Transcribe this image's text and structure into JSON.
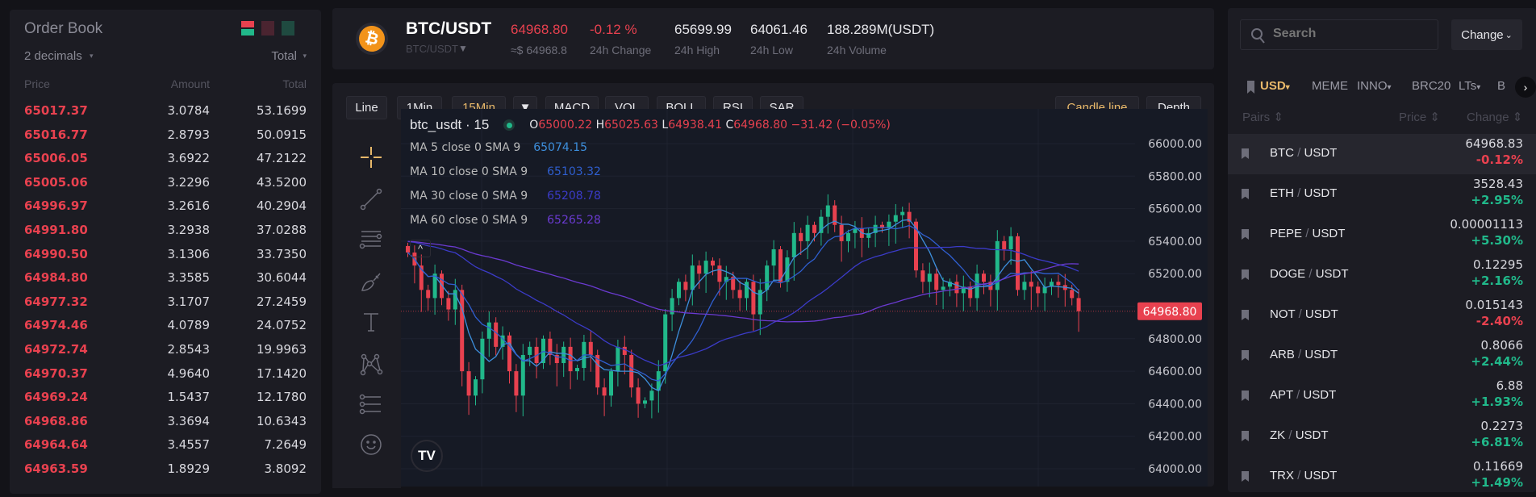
{
  "order_book": {
    "title": "Order Book",
    "decimals": "2 decimals",
    "total_select": "Total",
    "headers": {
      "price": "Price",
      "amount": "Amount",
      "total": "Total"
    },
    "asks": [
      [
        "65017.37",
        "3.0784",
        "53.1699"
      ],
      [
        "65016.77",
        "2.8793",
        "50.0915"
      ],
      [
        "65006.05",
        "3.6922",
        "47.2122"
      ],
      [
        "65005.06",
        "3.2296",
        "43.5200"
      ],
      [
        "64996.97",
        "3.2616",
        "40.2904"
      ],
      [
        "64991.80",
        "3.2938",
        "37.0288"
      ],
      [
        "64990.50",
        "3.1306",
        "33.7350"
      ],
      [
        "64984.80",
        "3.3585",
        "30.6044"
      ],
      [
        "64977.32",
        "3.1707",
        "27.2459"
      ],
      [
        "64974.46",
        "4.0789",
        "24.0752"
      ],
      [
        "64972.74",
        "2.8543",
        "19.9963"
      ],
      [
        "64970.37",
        "4.9640",
        "17.1420"
      ],
      [
        "64969.24",
        "1.5437",
        "12.1780"
      ],
      [
        "64968.86",
        "3.3694",
        "10.6343"
      ],
      [
        "64964.64",
        "3.4557",
        "7.2649"
      ],
      [
        "64963.59",
        "1.8929",
        "3.8092"
      ]
    ]
  },
  "ticker": {
    "pair": "BTC/USDT",
    "pair_select": "BTC/USDT",
    "price": "64968.80",
    "price_usd": "≈$ 64968.8",
    "change": "-0.12 %",
    "change_label": "24h Change",
    "high": "65699.99",
    "high_label": "24h High",
    "low": "64061.46",
    "low_label": "24h Low",
    "volume": "188.289M(USDT)",
    "volume_label": "24h Volume"
  },
  "toolbar": {
    "buttons": [
      "Line",
      "1Min",
      "15Min",
      "▼",
      "MACD",
      "VOL",
      "BOLL",
      "RSI",
      "SAR"
    ],
    "active": "15Min",
    "candle_line": "Candle line",
    "depth": "Depth"
  },
  "chart_data": {
    "type": "candlestick",
    "symbol": "btc_usdt · 15",
    "ohlc": {
      "o_label": "O",
      "o": "65000.22",
      "h_label": "H",
      "h": "65025.63",
      "l_label": "L",
      "l": "64938.41",
      "c_label": "C",
      "c": "64968.80",
      "change": "−31.42 (−0.05%)"
    },
    "ma": [
      {
        "label": "MA 5 close 0 SMA 9",
        "value": "65074.15",
        "color": "#3d8fdc",
        "period": 5
      },
      {
        "label": "MA 10 close 0 SMA 9",
        "value": "65103.32",
        "color": "#2f5fd0",
        "period": 10
      },
      {
        "label": "MA 30 close 0 SMA 9",
        "value": "65208.78",
        "color": "#3b3bc8",
        "period": 30
      },
      {
        "label": "MA 60 close 0 SMA 9",
        "value": "65265.28",
        "color": "#6a3ad0",
        "period": 60
      }
    ],
    "yticks": [
      "66000.00",
      "65800.00",
      "65600.00",
      "65400.00",
      "65200.00",
      "64800.00",
      "64600.00",
      "64400.00",
      "64200.00",
      "64000.00"
    ],
    "ylim": [
      64000,
      66000
    ],
    "last_price": "64968.80",
    "close": [
      65330,
      65250,
      65100,
      65050,
      65200,
      65050,
      64980,
      65100,
      64600,
      64450,
      64550,
      64800,
      64900,
      64750,
      64820,
      64600,
      64450,
      64700,
      64750,
      64650,
      64800,
      64700,
      64650,
      64750,
      64600,
      64620,
      64780,
      64700,
      64500,
      64450,
      64600,
      64750,
      64700,
      64500,
      64400,
      64420,
      64480,
      64600,
      64950,
      65050,
      65150,
      65100,
      65250,
      65200,
      65280,
      65250,
      65150,
      65180,
      65100,
      65050,
      65150,
      64950,
      65100,
      65250,
      65350,
      65150,
      65300,
      65450,
      65400,
      65500,
      65450,
      65550,
      65620,
      65500,
      65400,
      65450,
      65480,
      65420,
      65450,
      65500,
      65480,
      65520,
      65560,
      65580,
      65520,
      65220,
      65150,
      65200,
      65100,
      65120,
      65150,
      65080,
      65120,
      65050,
      65200,
      65150,
      65100,
      65400,
      65350,
      65430,
      65100,
      65150,
      65120,
      65080,
      65120,
      65150,
      65130,
      65100,
      65050,
      64968.8
    ],
    "up_color": "#21b88a",
    "down_color": "#e8414f",
    "grid": true
  },
  "markets": {
    "search_placeholder": "Search",
    "change_select": "Change",
    "tabs": [
      "USD",
      "MEME",
      "INNO",
      "BRC20",
      "LTs",
      "B"
    ],
    "active_tab": "USD",
    "headers": {
      "pairs": "Pairs",
      "price": "Price",
      "change": "Change"
    },
    "rows": [
      {
        "base": "BTC",
        "quote": "USDT",
        "price": "64968.83",
        "change": "-0.12%",
        "up": false
      },
      {
        "base": "ETH",
        "quote": "USDT",
        "price": "3528.43",
        "change": "+2.95%",
        "up": true
      },
      {
        "base": "PEPE",
        "quote": "USDT",
        "price": "0.00001113",
        "change": "+5.30%",
        "up": true
      },
      {
        "base": "DOGE",
        "quote": "USDT",
        "price": "0.12295",
        "change": "+2.16%",
        "up": true
      },
      {
        "base": "NOT",
        "quote": "USDT",
        "price": "0.015143",
        "change": "-2.40%",
        "up": false
      },
      {
        "base": "ARB",
        "quote": "USDT",
        "price": "0.8066",
        "change": "+2.44%",
        "up": true
      },
      {
        "base": "APT",
        "quote": "USDT",
        "price": "6.88",
        "change": "+1.93%",
        "up": true
      },
      {
        "base": "ZK",
        "quote": "USDT",
        "price": "0.2273",
        "change": "+6.81%",
        "up": true
      },
      {
        "base": "TRX",
        "quote": "USDT",
        "price": "0.11669",
        "change": "+1.49%",
        "up": true
      }
    ]
  }
}
